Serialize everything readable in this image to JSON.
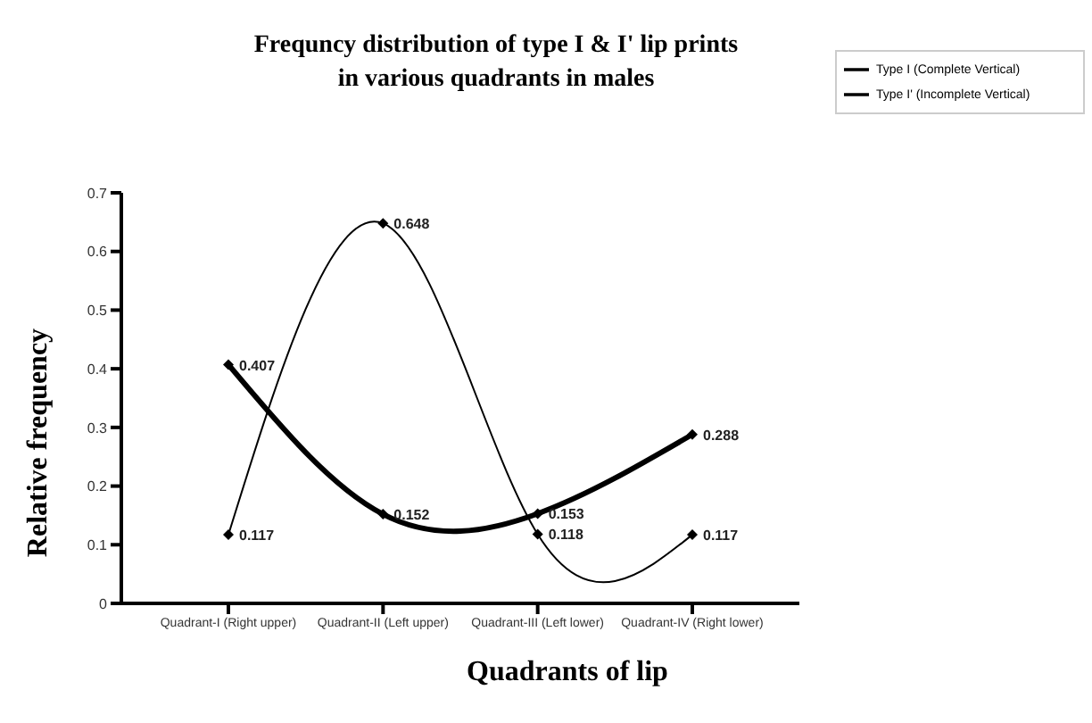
{
  "chart_data": {
    "type": "line",
    "title": "Frequncy distribution of type I & I' lip prints\nin various quadrants in males",
    "xlabel": "Quadrants of lip",
    "ylabel": "Relative frequency",
    "categories": [
      "Quadrant-I (Right upper)",
      "Quadrant-II (Left upper)",
      "Quadrant-III (Left lower)",
      "Quadrant-IV (Right lower)"
    ],
    "series": [
      {
        "name": "Type I (Complete Vertical)",
        "color": "#000000",
        "values": [
          0.407,
          0.152,
          0.153,
          0.288
        ]
      },
      {
        "name": "Type I' (Incomplete Vertical)",
        "color": "#000000",
        "values": [
          0.117,
          0.648,
          0.118,
          0.117
        ]
      }
    ],
    "ylim": [
      0,
      0.7
    ],
    "yticks": [
      0,
      0.1,
      0.2,
      0.3,
      0.4,
      0.5,
      0.6,
      0.7
    ],
    "grid": false,
    "legend": "top right",
    "marker": "diamond",
    "data_labels": true
  }
}
